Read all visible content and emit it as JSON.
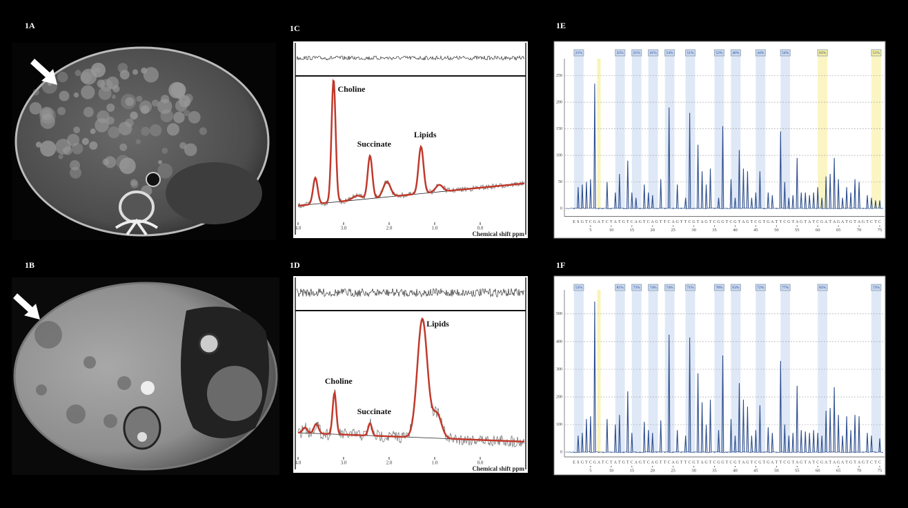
{
  "images": [
    {
      "label": "1A"
    },
    {
      "label": "1B"
    }
  ],
  "spectra": [
    {
      "label": "1C",
      "x_axis_label": "Chemical shift ppm",
      "xlim": [
        4.06,
        -1.0
      ],
      "xticks": [
        {
          "value": 4,
          "label": "4.0"
        },
        {
          "value": 3,
          "label": "3.0"
        },
        {
          "value": 2,
          "label": "2.0"
        },
        {
          "value": 1,
          "label": "1.0"
        },
        {
          "value": 0,
          "label": "0.0"
        }
      ],
      "peak_labels": [
        {
          "text": "Choline",
          "ppm": 3.22
        },
        {
          "text": "Succinate",
          "ppm": 2.42
        },
        {
          "text": "Lipids",
          "ppm": 1.3
        }
      ]
    },
    {
      "label": "1D",
      "x_axis_label": "Chemical shift ppm",
      "xlim": [
        4.06,
        -1.0
      ],
      "xticks": [
        {
          "value": 4,
          "label": "4.0"
        },
        {
          "value": 3,
          "label": "3.0"
        },
        {
          "value": 2,
          "label": "2.0"
        },
        {
          "value": 1,
          "label": "1.0"
        },
        {
          "value": 0,
          "label": "0.0"
        }
      ],
      "peak_labels": [
        {
          "text": "Choline",
          "ppm": 3.2
        },
        {
          "text": "Succinate",
          "ppm": 2.42
        },
        {
          "text": "Lipids",
          "ppm": 1.27
        }
      ]
    }
  ],
  "chart_data": [
    {
      "type": "bar",
      "label": "1E",
      "color": "#2b4c8c",
      "grid": true,
      "xlim": [
        -1,
        77
      ],
      "xticks": [
        5,
        10,
        15,
        20,
        25,
        30,
        35,
        40,
        45,
        50,
        55,
        60,
        65,
        70,
        75
      ],
      "ylim": [
        -15,
        282
      ],
      "yticks": [
        0,
        50,
        100,
        150,
        200,
        250
      ],
      "sequence": [
        "E",
        "S",
        "G",
        "T",
        "C",
        "G",
        "A",
        "T",
        "C",
        "T",
        "A",
        "T",
        "G",
        "T",
        "C",
        "A",
        "G",
        "T",
        "C",
        "A",
        "G",
        "T",
        "T",
        "C",
        "A",
        "G",
        "T",
        "T",
        "C",
        "G",
        "T",
        "A",
        "G",
        "T",
        "C",
        "G",
        "G",
        "T",
        "C",
        "G",
        "T",
        "A",
        "G",
        "T",
        "C",
        "G",
        "T",
        "G",
        "A",
        "T",
        "T",
        "C",
        "G",
        "T",
        "A",
        "G",
        "T",
        "A",
        "T",
        "C",
        "G",
        "A",
        "T",
        "A",
        "G",
        "A",
        "T",
        "G",
        "T",
        "A",
        "G",
        "T",
        "C",
        "T",
        "C"
      ],
      "values": [
        0,
        40,
        45,
        50,
        55,
        235,
        0,
        0,
        50,
        0,
        30,
        65,
        0,
        90,
        30,
        20,
        0,
        45,
        30,
        25,
        0,
        55,
        0,
        190,
        0,
        45,
        0,
        20,
        180,
        0,
        120,
        70,
        45,
        75,
        0,
        20,
        155,
        0,
        55,
        20,
        110,
        75,
        70,
        20,
        30,
        70,
        0,
        30,
        25,
        0,
        145,
        50,
        20,
        25,
        95,
        30,
        30,
        25,
        30,
        40,
        20,
        60,
        65,
        95,
        55,
        20,
        40,
        30,
        55,
        50,
        0,
        25,
        20,
        15,
        15
      ],
      "cpg_sites": [
        {
          "x": 2,
          "label": "21%",
          "color": "#c9d9f0"
        },
        {
          "x": 12,
          "label": "25%",
          "color": "#c9d9f0"
        },
        {
          "x": 16,
          "label": "21%",
          "color": "#c9d9f0"
        },
        {
          "x": 20,
          "label": "41%",
          "color": "#c9d9f0"
        },
        {
          "x": 24,
          "label": "54%",
          "color": "#c9d9f0"
        },
        {
          "x": 29,
          "label": "51%",
          "color": "#c9d9f0"
        },
        {
          "x": 36,
          "label": "52%",
          "color": "#c9d9f0"
        },
        {
          "x": 40,
          "label": "46%",
          "color": "#c9d9f0"
        },
        {
          "x": 46,
          "label": "44%",
          "color": "#c9d9f0"
        },
        {
          "x": 52,
          "label": "54%",
          "color": "#c9d9f0"
        },
        {
          "x": 61,
          "label": "63%",
          "color": "#f6ef9a"
        },
        {
          "x": 74,
          "label": "51%",
          "color": "#f6ef9a"
        }
      ]
    },
    {
      "type": "bar",
      "label": "1F",
      "color": "#2b4c8c",
      "grid": true,
      "xlim": [
        -1,
        77
      ],
      "xticks": [
        5,
        10,
        15,
        20,
        25,
        30,
        35,
        40,
        45,
        50,
        55,
        60,
        65,
        70,
        75
      ],
      "ylim": [
        -17,
        587
      ],
      "yticks": [
        0,
        100,
        200,
        300,
        400,
        500
      ],
      "sequence": [
        "E",
        "S",
        "G",
        "T",
        "C",
        "G",
        "A",
        "T",
        "C",
        "T",
        "A",
        "T",
        "G",
        "T",
        "C",
        "A",
        "G",
        "T",
        "C",
        "A",
        "G",
        "T",
        "T",
        "C",
        "A",
        "G",
        "T",
        "T",
        "C",
        "G",
        "T",
        "A",
        "G",
        "T",
        "C",
        "G",
        "G",
        "T",
        "C",
        "G",
        "T",
        "A",
        "G",
        "T",
        "C",
        "G",
        "T",
        "G",
        "A",
        "T",
        "T",
        "C",
        "G",
        "T",
        "A",
        "G",
        "T",
        "A",
        "T",
        "C",
        "G",
        "A",
        "T",
        "A",
        "G",
        "A",
        "T",
        "G",
        "T",
        "A",
        "G",
        "T",
        "C",
        "T",
        "C"
      ],
      "values": [
        0,
        60,
        70,
        120,
        130,
        545,
        0,
        0,
        120,
        0,
        100,
        135,
        0,
        220,
        70,
        0,
        0,
        110,
        80,
        70,
        0,
        115,
        0,
        425,
        0,
        80,
        0,
        60,
        415,
        0,
        285,
        180,
        100,
        190,
        0,
        80,
        350,
        0,
        120,
        60,
        250,
        190,
        165,
        60,
        80,
        170,
        0,
        90,
        70,
        0,
        330,
        100,
        60,
        70,
        240,
        80,
        75,
        70,
        80,
        70,
        60,
        150,
        160,
        235,
        135,
        60,
        130,
        80,
        135,
        130,
        0,
        70,
        60,
        0,
        50
      ],
      "cpg_sites": [
        {
          "x": 2,
          "label": "53%",
          "color": "#c9d9f0"
        },
        {
          "x": 12,
          "label": "81%",
          "color": "#c9d9f0"
        },
        {
          "x": 16,
          "label": "73%",
          "color": "#c9d9f0"
        },
        {
          "x": 20,
          "label": "74%",
          "color": "#c9d9f0"
        },
        {
          "x": 24,
          "label": "74%",
          "color": "#c9d9f0"
        },
        {
          "x": 29,
          "label": "71%",
          "color": "#c9d9f0"
        },
        {
          "x": 36,
          "label": "78%",
          "color": "#c9d9f0"
        },
        {
          "x": 40,
          "label": "63%",
          "color": "#c9d9f0"
        },
        {
          "x": 46,
          "label": "72%",
          "color": "#c9d9f0"
        },
        {
          "x": 52,
          "label": "77%",
          "color": "#c9d9f0"
        },
        {
          "x": 61,
          "label": "83%",
          "color": "#c9d9f0"
        },
        {
          "x": 74,
          "label": "73%",
          "color": "#c9d9f0"
        }
      ]
    }
  ]
}
